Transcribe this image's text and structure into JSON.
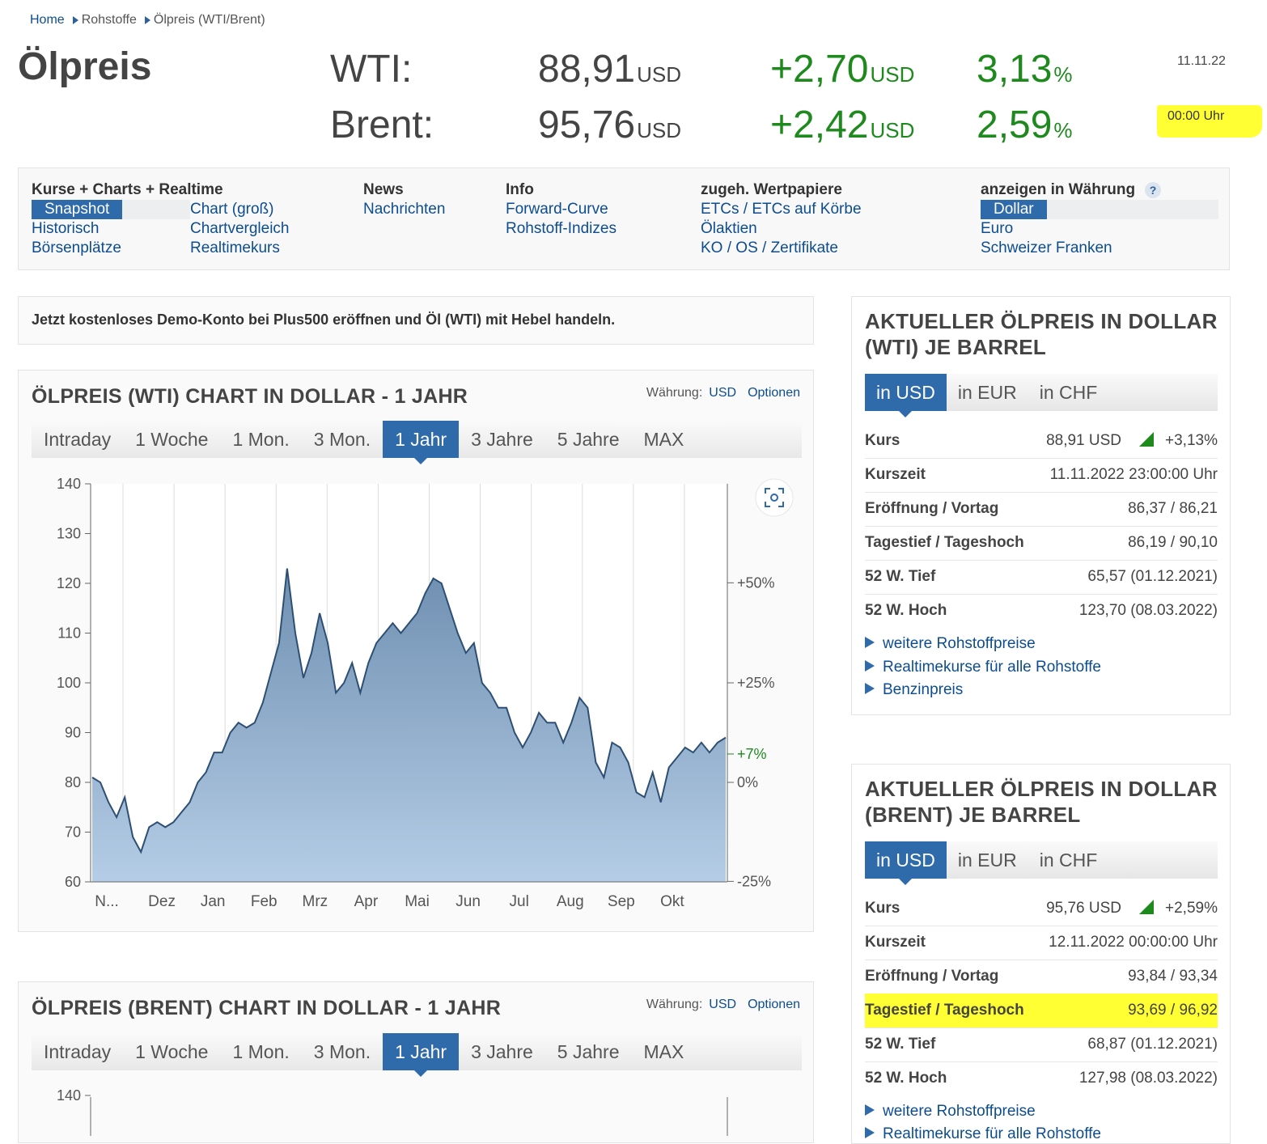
{
  "breadcrumb": [
    "Home",
    "Rohstoffe",
    "Ölpreis (WTI/Brent)"
  ],
  "page_title": "Ölpreis",
  "quotes": [
    {
      "name": "WTI:",
      "price": "88,91",
      "unit": "USD",
      "change": "+2,70",
      "change_unit": "USD",
      "pct": "3,13",
      "pct_unit": "%"
    },
    {
      "name": "Brent:",
      "price": "95,76",
      "unit": "USD",
      "change": "+2,42",
      "change_unit": "USD",
      "pct": "2,59",
      "pct_unit": "%"
    }
  ],
  "date": "11.11.22",
  "time": "00:00 Uhr",
  "highlight_color": "#ffff33",
  "accent_color": "#2f6aab",
  "positive_color": "#1e8a1e",
  "nav": {
    "kurse": {
      "heading": "Kurse + Charts + Realtime",
      "col1": [
        "Snapshot",
        "Historisch",
        "Börsenplätze"
      ],
      "col2": [
        "Chart (groß)",
        "Chartvergleich",
        "Realtimekurs"
      ]
    },
    "news": {
      "heading": "News",
      "items": [
        "Nachrichten"
      ]
    },
    "info": {
      "heading": "Info",
      "items": [
        "Forward-Curve",
        "Rohstoff-Indizes"
      ]
    },
    "wertpapiere": {
      "heading": "zugeh. Wertpapiere",
      "items": [
        "ETCs / ETCs auf Körbe",
        "Ölaktien",
        "KO / OS / Zertifikate"
      ]
    },
    "waehrung": {
      "heading": "anzeigen in Währung",
      "help": "?",
      "items": [
        "Dollar",
        "Euro",
        "Schweizer Franken"
      ]
    }
  },
  "ad_text": "Jetzt kostenloses Demo-Konto bei Plus500 eröffnen und Öl (WTI) mit Hebel handeln.",
  "chart_options": {
    "currency_label": "Währung:",
    "currency": "USD",
    "options": "Optionen"
  },
  "chart_tabs": [
    "Intraday",
    "1 Woche",
    "1 Mon.",
    "3 Mon.",
    "1 Jahr",
    "3 Jahre",
    "5 Jahre",
    "MAX"
  ],
  "chart_wti_title": "ÖLPREIS (WTI) CHART IN DOLLAR - 1 JAHR",
  "chart_brent_title": "ÖLPREIS (BRENT) CHART IN DOLLAR - 1 JAHR",
  "chart_data": [
    {
      "type": "area",
      "title": "ÖLPREIS (WTI) CHART IN DOLLAR - 1 JAHR",
      "x_ticks": [
        "N...",
        "Dez",
        "Jan",
        "Feb",
        "Mrz",
        "Apr",
        "Mai",
        "Jun",
        "Jul",
        "Aug",
        "Sep",
        "Okt"
      ],
      "y_ticks": [
        "140",
        "130",
        "120",
        "110",
        "100",
        "90",
        "80",
        "70",
        "60"
      ],
      "ylim": [
        60,
        140
      ],
      "y2_ticks": [
        {
          "label": "+50%",
          "value": 120.1
        },
        {
          "label": "+25%",
          "value": 100.0
        },
        {
          "label": "+7%",
          "value": 85.7,
          "highlight": true
        },
        {
          "label": "0%",
          "value": 80.0
        },
        {
          "label": "-25%",
          "value": 60.1
        }
      ],
      "grid": true,
      "values": [
        81,
        80,
        76,
        73,
        77,
        69,
        66,
        71,
        72,
        71,
        72,
        74,
        76,
        80,
        82,
        86,
        86,
        90,
        92,
        91,
        92,
        96,
        102,
        108,
        123,
        110,
        101,
        106,
        114,
        108,
        98,
        100,
        104,
        98,
        104,
        108,
        110,
        112,
        110,
        112,
        114,
        118,
        121,
        120,
        115,
        110,
        106,
        108,
        100,
        98,
        95,
        95,
        90,
        87,
        90,
        94,
        92,
        92,
        88,
        92,
        97,
        95,
        84,
        81,
        88,
        87,
        84,
        78,
        77,
        82,
        76,
        83,
        85,
        87,
        86,
        88,
        86,
        88,
        89
      ]
    },
    {
      "type": "area",
      "title": "ÖLPREIS (BRENT) CHART IN DOLLAR - 1 JAHR",
      "y_ticks": [
        "140"
      ]
    }
  ],
  "side_tabs": [
    "in USD",
    "in EUR",
    "in CHF"
  ],
  "wti_panel": {
    "title": "AKTUELLER ÖLPREIS IN DOLLAR (WTI) JE BARREL",
    "rows": [
      {
        "k": "Kurs",
        "v": "88,91 USD",
        "pct": "+3,13%"
      },
      {
        "k": "Kurszeit",
        "v": "11.11.2022 23:00:00 Uhr"
      },
      {
        "k": "Eröffnung / Vortag",
        "v": "86,37 / 86,21"
      },
      {
        "k": "Tagestief / Tageshoch",
        "v": "86,19 / 90,10"
      },
      {
        "k": "52 W. Tief",
        "v": "65,57 (01.12.2021)"
      },
      {
        "k": "52 W. Hoch",
        "v": "123,70 (08.03.2022)"
      }
    ],
    "links": [
      "weitere Rohstoffpreise",
      "Realtimekurse für alle Rohstoffe",
      "Benzinpreis"
    ]
  },
  "brent_panel": {
    "title": "AKTUELLER ÖLPREIS IN DOLLAR (BRENT) JE BARREL",
    "rows": [
      {
        "k": "Kurs",
        "v": "95,76 USD",
        "pct": "+2,59%"
      },
      {
        "k": "Kurszeit",
        "v": "12.11.2022 00:00:00 Uhr"
      },
      {
        "k": "Eröffnung / Vortag",
        "v": "93,84 / 93,34"
      },
      {
        "k": "Tagestief / Tageshoch",
        "v": "93,69 / 96,92"
      },
      {
        "k": "52 W. Tief",
        "v": "68,87 (01.12.2021)"
      },
      {
        "k": "52 W. Hoch",
        "v": "127,98 (08.03.2022)"
      }
    ],
    "links": [
      "weitere Rohstoffpreise",
      "Realtimekurse für alle Rohstoffe"
    ]
  }
}
